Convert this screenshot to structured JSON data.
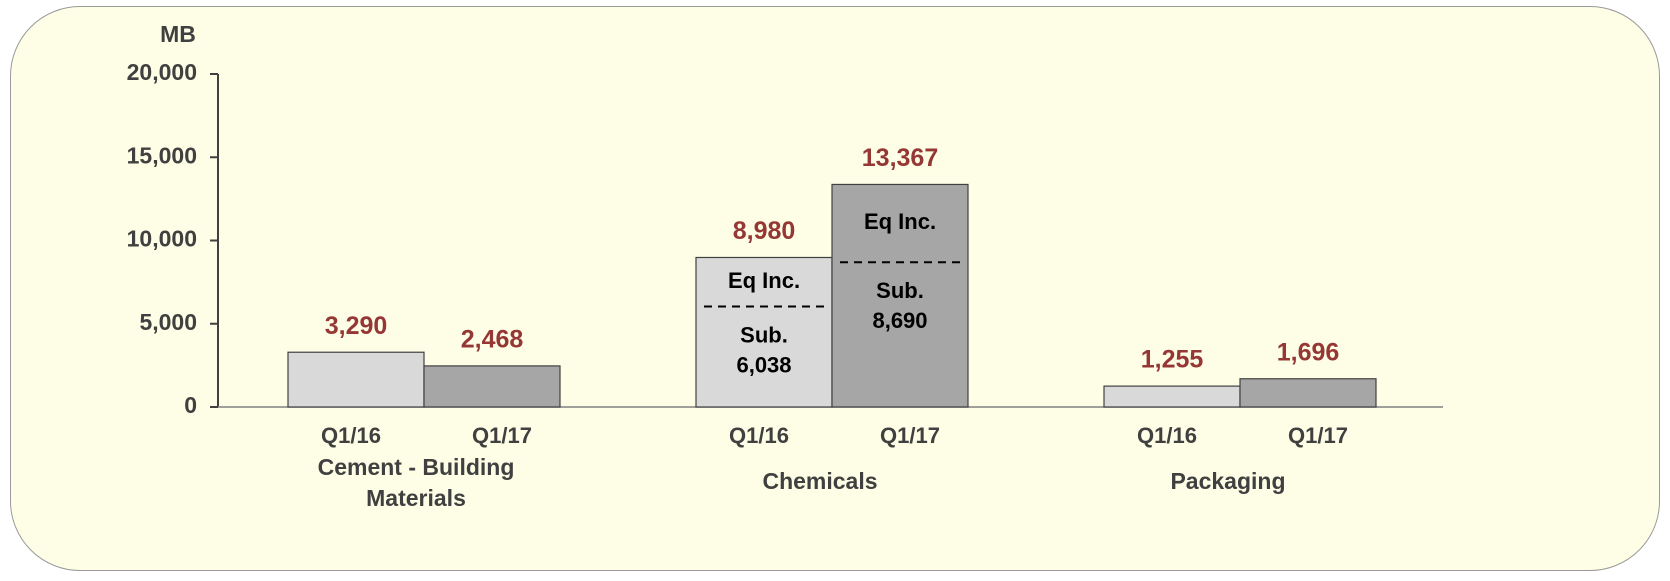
{
  "chart_data": {
    "type": "bar",
    "y_label": "MB",
    "categories": [
      "Cement - Building Materials",
      "Chemicals",
      "Packaging"
    ],
    "series": [
      {
        "name": "Q1/16",
        "color": "#d9d9d9",
        "values": [
          3290,
          8980,
          1255
        ],
        "value_labels": [
          "3,290",
          "8,980",
          "1,255"
        ],
        "sub_values": [
          null,
          6038,
          null
        ],
        "sub_value_labels": [
          null,
          "6,038",
          null
        ]
      },
      {
        "name": "Q1/17",
        "color": "#a6a6a6",
        "values": [
          2468,
          13367,
          1696
        ],
        "value_labels": [
          "2,468",
          "13,367",
          "1,696"
        ],
        "sub_values": [
          null,
          8690,
          null
        ],
        "sub_value_labels": [
          null,
          "8,690",
          null
        ]
      }
    ],
    "segment_labels": {
      "upper": "Eq Inc.",
      "lower": "Sub."
    },
    "value_label_color": "#953735",
    "ylim": [
      0,
      20000
    ],
    "yticks": [
      0,
      {
        "value": 5000,
        "label": "5,000"
      },
      {
        "value": 10000,
        "label": "10,000"
      },
      {
        "value": 15000,
        "label": "15,000"
      },
      {
        "value": 20000,
        "label": "20,000"
      }
    ]
  }
}
